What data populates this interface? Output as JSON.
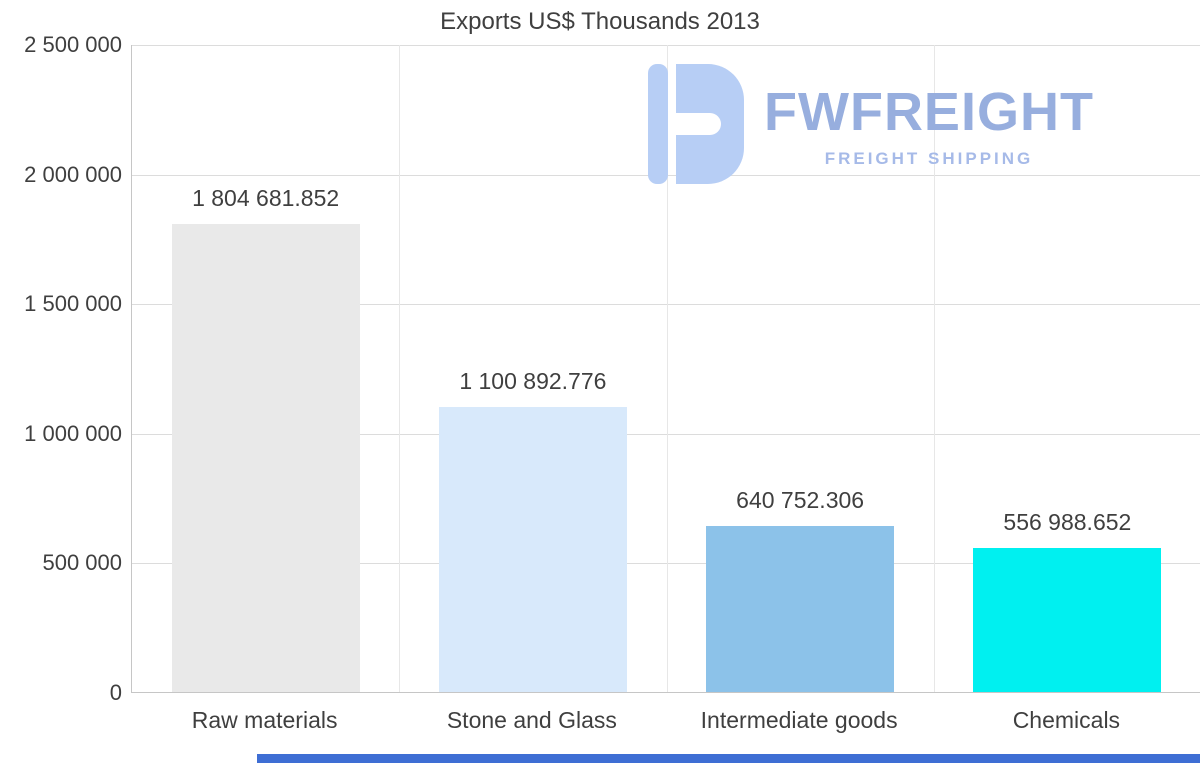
{
  "chart_data": {
    "type": "bar",
    "title": "Exports US$ Thousands 2013",
    "categories": [
      "Raw materials",
      "Stone and Glass",
      "Intermediate goods",
      "Chemicals"
    ],
    "values": [
      1804681.852,
      1100892.776,
      640752.306,
      556988.652
    ],
    "value_labels": [
      "1 804 681.852",
      "1 100 892.776",
      "640 752.306",
      "556 988.652"
    ],
    "bar_colors": [
      "#e9e9e9",
      "#d8e9fb",
      "#8cc2e9",
      "#00f0f0"
    ],
    "xlabel": "",
    "ylabel": "",
    "ylim": [
      0,
      2500000
    ],
    "ytick_values": [
      0,
      500000,
      1000000,
      1500000,
      2000000,
      2500000
    ],
    "ytick_labels": [
      "0",
      "500 000",
      "1 000 000",
      "1 500 000",
      "2 000 000",
      "2 500 000"
    ],
    "grid": true,
    "legend": false
  },
  "watermark": {
    "brand": "FWFREIGHT",
    "tagline": "FREIGHT SHIPPING",
    "brand_color": "#97aede",
    "tagline_color": "#a6bae8",
    "icon_color": "#b7cef5"
  },
  "colors": {
    "text": "#3f3f3f",
    "gridline": "#dcdcdc",
    "axis": "#c6c6c6",
    "bottom_strip": "#3e6ed4"
  }
}
